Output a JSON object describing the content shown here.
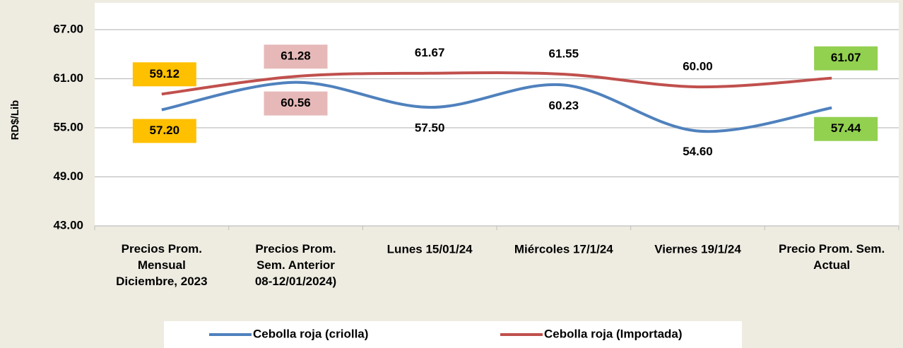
{
  "chart_data": {
    "type": "line",
    "y_label": "RD$/Lib",
    "categories": [
      "Precios Prom.\nMensual\nDiciembre, 2023",
      "Precios Prom.\nSem. Anterior\n08-12/01/2024)",
      "Lunes  15/01/24",
      "Miércoles 17/1/24",
      "Viernes 19/1/24",
      "Precio Prom. Sem.\nActual"
    ],
    "series": [
      {
        "name": "Cebolla roja (criolla)",
        "color": "#4F81BD",
        "values": [
          57.2,
          60.56,
          57.5,
          60.23,
          54.6,
          57.44
        ],
        "value_labels": [
          "57.20",
          "60.56",
          "57.50",
          "60.23",
          "54.60",
          "57.44"
        ],
        "label_backgrounds": [
          "#FFC000",
          "#E6B9B8",
          null,
          null,
          null,
          "#92D050"
        ]
      },
      {
        "name": "Cebolla roja (Importada)",
        "color": "#C0504D",
        "values": [
          59.12,
          61.28,
          61.67,
          61.55,
          60.0,
          61.07
        ],
        "value_labels": [
          "59.12",
          "61.28",
          "61.67",
          "61.55",
          "60.00",
          "61.07"
        ],
        "label_backgrounds": [
          "#FFC000",
          "#E6B9B8",
          null,
          null,
          null,
          "#92D050"
        ]
      }
    ],
    "ylim": [
      43,
      67
    ],
    "yticks": [
      {
        "value": 43,
        "label": "43.00"
      },
      {
        "value": 49,
        "label": "49.00"
      },
      {
        "value": 55,
        "label": "55.00"
      },
      {
        "value": 61,
        "label": "61.00"
      },
      {
        "value": 67,
        "label": "67.00"
      }
    ],
    "grid": true,
    "legend": "bottom"
  }
}
